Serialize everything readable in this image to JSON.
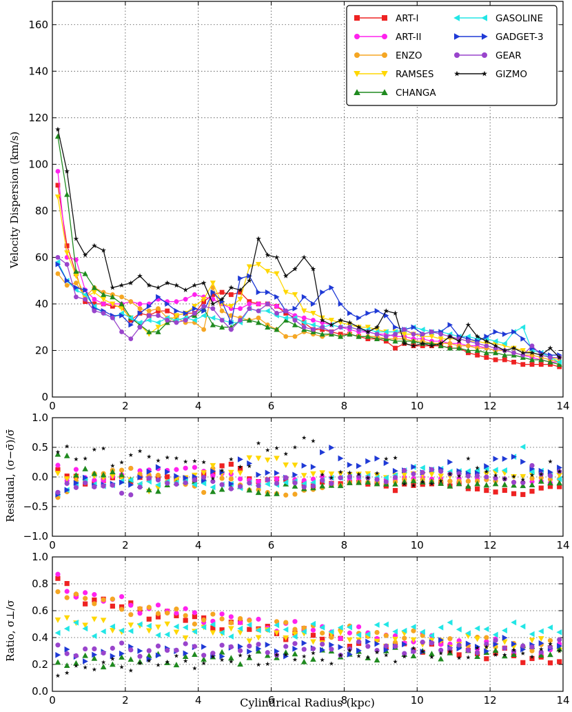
{
  "colors": {
    "ART-I": "#ee2222",
    "ART-II": "#ff22ee",
    "ENZO": "#f5a623",
    "RAMSES": "#ffd700",
    "CHANGA": "#1f8a1f",
    "GASOLINE": "#22e6e6",
    "GADGET-3": "#1f3ad6",
    "GEAR": "#9944cc",
    "GIZMO": "#111111"
  },
  "chart_data": [
    {
      "type": "line",
      "ylabel": "Velocity Dispersion (km/s)",
      "xlabel": "",
      "xlim": [
        0,
        14
      ],
      "ylim": [
        0,
        170
      ],
      "xticks": [
        "0",
        "2",
        "4",
        "6",
        "8",
        "10",
        "12",
        "14"
      ],
      "yticks": [
        "0",
        "20",
        "40",
        "60",
        "80",
        "100",
        "120",
        "140",
        "160"
      ],
      "x": [
        0.15,
        0.4,
        0.65,
        0.9,
        1.15,
        1.4,
        1.65,
        1.9,
        2.15,
        2.4,
        2.65,
        2.9,
        3.15,
        3.4,
        3.65,
        3.9,
        4.15,
        4.4,
        4.65,
        4.9,
        5.15,
        5.4,
        5.65,
        5.9,
        6.15,
        6.4,
        6.65,
        6.9,
        7.15,
        7.4,
        7.65,
        7.9,
        8.15,
        8.4,
        8.65,
        8.9,
        9.15,
        9.4,
        9.65,
        9.9,
        10.15,
        10.4,
        10.65,
        10.9,
        11.15,
        11.4,
        11.65,
        11.9,
        12.15,
        12.4,
        12.65,
        12.9,
        13.15,
        13.4,
        13.65,
        13.9
      ],
      "legend": {
        "left": [
          "ART-I",
          "ART-II",
          "ENZO",
          "RAMSES",
          "CHANGA"
        ],
        "right": [
          "GASOLINE",
          "GADGET-3",
          "GEAR",
          "GIZMO"
        ]
      },
      "series": [
        {
          "name": "ART-I",
          "marker": "square",
          "values": [
            91,
            65,
            53,
            41,
            40,
            40,
            39,
            39,
            33,
            36,
            35,
            37,
            37,
            35,
            36,
            36,
            41,
            44,
            45,
            44,
            45,
            41,
            40,
            40,
            39,
            36,
            34,
            32,
            29,
            29,
            28,
            27,
            27,
            26,
            25,
            25,
            24,
            21,
            23,
            22,
            22,
            22,
            22,
            21,
            21,
            19,
            18,
            17,
            16,
            16,
            15,
            14,
            14,
            14,
            14,
            13
          ]
        },
        {
          "name": "ART-II",
          "marker": "circle",
          "values": [
            97,
            60,
            59,
            46,
            42,
            40,
            40,
            40,
            41,
            40,
            40,
            42,
            41,
            41,
            42,
            44,
            43,
            42,
            40,
            38,
            38,
            40,
            40,
            40,
            39,
            37,
            35,
            34,
            33,
            32,
            31,
            30,
            29,
            28,
            28,
            27,
            27,
            26,
            26,
            25,
            25,
            24,
            24,
            23,
            23,
            22,
            22,
            21,
            20,
            20,
            19,
            18,
            17,
            16,
            15,
            15
          ]
        },
        {
          "name": "ENZO",
          "marker": "hexagon",
          "values": [
            53,
            48,
            49,
            43,
            47,
            45,
            44,
            43,
            41,
            38,
            37,
            38,
            34,
            34,
            32,
            32,
            29,
            47,
            37,
            35,
            34,
            33,
            34,
            31,
            29,
            26,
            26,
            28,
            27,
            26,
            27,
            26,
            27,
            26,
            26,
            26,
            25,
            25,
            25,
            24,
            24,
            23,
            23,
            23,
            22,
            22,
            21,
            21,
            20,
            20,
            19,
            18,
            18,
            17,
            16,
            15
          ]
        },
        {
          "name": "RAMSES",
          "marker": "tri_down",
          "values": [
            86,
            62,
            52,
            43,
            45,
            42,
            40,
            38,
            34,
            31,
            27,
            30,
            32,
            35,
            36,
            39,
            42,
            49,
            40,
            39,
            42,
            56,
            57,
            54,
            53,
            45,
            44,
            37,
            36,
            34,
            33,
            32,
            31,
            30,
            30,
            29,
            28,
            28,
            27,
            27,
            26,
            26,
            25,
            25,
            25,
            24,
            24,
            23,
            23,
            22,
            21,
            20,
            19,
            18,
            17,
            16
          ]
        },
        {
          "name": "CHANGA",
          "marker": "tri_up",
          "values": [
            112,
            87,
            54,
            53,
            47,
            44,
            43,
            40,
            34,
            31,
            28,
            28,
            32,
            33,
            34,
            35,
            38,
            31,
            30,
            30,
            33,
            33,
            32,
            30,
            29,
            33,
            31,
            29,
            28,
            27,
            27,
            26,
            27,
            26,
            26,
            25,
            25,
            24,
            24,
            24,
            23,
            23,
            22,
            21,
            21,
            20,
            20,
            19,
            19,
            18,
            18,
            17,
            16,
            16,
            15,
            14
          ]
        },
        {
          "name": "GASOLINE",
          "marker": "tri_left",
          "values": [
            58,
            50,
            46,
            44,
            39,
            36,
            34,
            36,
            34,
            32,
            33,
            32,
            34,
            33,
            34,
            33,
            35,
            34,
            33,
            32,
            32,
            38,
            37,
            37,
            35,
            34,
            34,
            32,
            31,
            30,
            31,
            30,
            30,
            29,
            29,
            28,
            28,
            28,
            29,
            30,
            29,
            28,
            28,
            27,
            26,
            26,
            25,
            25,
            24,
            23,
            28,
            30,
            20,
            19,
            17,
            15
          ]
        },
        {
          "name": "GADGET-3",
          "marker": "tri_right",
          "values": [
            57,
            50,
            47,
            46,
            38,
            37,
            35,
            35,
            31,
            36,
            39,
            43,
            40,
            37,
            36,
            38,
            37,
            45,
            41,
            32,
            51,
            52,
            45,
            45,
            43,
            37,
            38,
            43,
            40,
            45,
            47,
            40,
            36,
            34,
            36,
            37,
            35,
            30,
            29,
            30,
            27,
            28,
            28,
            31,
            26,
            25,
            24,
            26,
            28,
            27,
            28,
            25,
            21,
            19,
            18,
            18
          ]
        },
        {
          "name": "GEAR",
          "marker": "circle",
          "values": [
            60,
            57,
            43,
            42,
            37,
            36,
            34,
            28,
            25,
            30,
            35,
            35,
            33,
            32,
            33,
            36,
            39,
            38,
            33,
            29,
            33,
            38,
            37,
            40,
            36,
            37,
            33,
            30,
            29,
            30,
            28,
            30,
            30,
            29,
            28,
            27,
            26,
            27,
            29,
            27,
            27,
            28,
            27,
            26,
            25,
            24,
            23,
            22,
            21,
            20,
            19,
            18,
            22,
            18,
            17,
            17
          ]
        },
        {
          "name": "GIZMO",
          "marker": "star",
          "values": [
            115,
            97,
            68,
            61,
            65,
            63,
            47,
            48,
            49,
            52,
            48,
            47,
            49,
            48,
            46,
            48,
            49,
            40,
            42,
            47,
            46,
            50,
            68,
            61,
            60,
            52,
            55,
            60,
            55,
            33,
            31,
            33,
            32,
            30,
            28,
            30,
            37,
            36,
            23,
            22,
            23,
            22,
            23,
            26,
            24,
            31,
            26,
            24,
            22,
            20,
            21,
            19,
            19,
            18,
            21,
            17
          ]
        }
      ]
    },
    {
      "type": "scatter",
      "ylabel": "Residual, (σ−σ̄)/σ̄",
      "xlim": [
        0,
        14
      ],
      "ylim": [
        -1.0,
        1.0
      ],
      "xticks": [
        "0",
        "2",
        "4",
        "6",
        "8",
        "10",
        "12",
        "14"
      ],
      "yticks": [
        "−1.0",
        "−0.5",
        "0.0",
        "0.5",
        "1.0"
      ],
      "series_names": [
        "ART-I",
        "ART-II",
        "ENZO",
        "RAMSES",
        "CHANGA",
        "GASOLINE",
        "GADGET-3",
        "GEAR",
        "GIZMO"
      ]
    },
    {
      "type": "scatter",
      "ylabel": "Ratio, σ⊥/σ",
      "xlabel": "Cylindrical Radius (kpc)",
      "xlim": [
        0,
        14
      ],
      "ylim": [
        0.0,
        1.0
      ],
      "xticks": [
        "0",
        "2",
        "4",
        "6",
        "8",
        "10",
        "12",
        "14"
      ],
      "yticks": [
        "0.0",
        "0.2",
        "0.4",
        "0.6",
        "0.8",
        "1.0"
      ],
      "series": [
        {
          "name": "ART-I",
          "start": 0.82,
          "end": 0.23
        },
        {
          "name": "ART-II",
          "start": 0.83,
          "end": 0.3
        },
        {
          "name": "ENZO",
          "start": 0.78,
          "end": 0.32
        },
        {
          "name": "RAMSES",
          "start": 0.55,
          "end": 0.34
        },
        {
          "name": "CHANGA",
          "start": 0.2,
          "end": 0.3
        },
        {
          "name": "GASOLINE",
          "start": 0.46,
          "end": 0.46
        },
        {
          "name": "GADGET-3",
          "start": 0.25,
          "end": 0.35
        },
        {
          "name": "GEAR",
          "start": 0.3,
          "end": 0.33
        },
        {
          "name": "GIZMO",
          "start": 0.15,
          "end": 0.3
        }
      ]
    }
  ]
}
